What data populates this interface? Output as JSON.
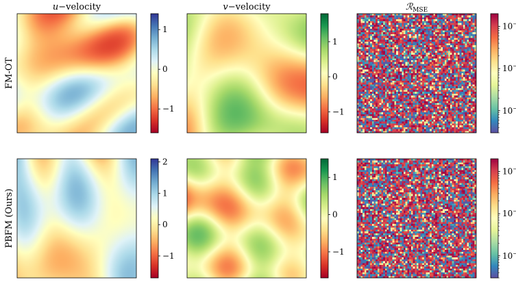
{
  "chart_data": {
    "type": "heatmap",
    "columns": [
      {
        "title_var": "u",
        "title_rest": "−velocity",
        "colormap": "RdYlBu"
      },
      {
        "title_var": "v",
        "title_rest": "−velocity",
        "colormap": "RdYlGn"
      },
      {
        "title_var": "ℛ",
        "title_sub": "MSE",
        "colormap": "Spectral"
      }
    ],
    "rows": [
      {
        "label": "FM-OT",
        "panels": [
          {
            "field": "smooth",
            "range": [
              -1.6,
              1.4
            ],
            "ticks": [
              {
                "label": "−1",
                "value": -1
              },
              {
                "label": "0",
                "value": 0
              },
              {
                "label": "1",
                "value": 1
              }
            ],
            "scale": "linear"
          },
          {
            "field": "smooth",
            "range": [
              -1.6,
              1.8
            ],
            "ticks": [
              {
                "label": "−1",
                "value": -1
              },
              {
                "label": "0",
                "value": 0
              },
              {
                "label": "1",
                "value": 1
              }
            ],
            "scale": "linear"
          },
          {
            "field": "noise",
            "range": [
              0.0003,
              0.2
            ],
            "ticks": [
              {
                "label": "10",
                "exp": "−3",
                "value": 0.001
              },
              {
                "label": "10",
                "exp": "−2",
                "value": 0.01
              },
              {
                "label": "10",
                "exp": "−1",
                "value": 0.1
              }
            ],
            "scale": "log"
          }
        ]
      },
      {
        "label": "PBFM (Ours)",
        "panels": [
          {
            "field": "smooth",
            "range": [
              -1.7,
              2.1
            ],
            "ticks": [
              {
                "label": "−1",
                "value": -1
              },
              {
                "label": "0",
                "value": 0
              },
              {
                "label": "1",
                "value": 1
              },
              {
                "label": "2",
                "value": 2
              }
            ],
            "scale": "linear"
          },
          {
            "field": "smooth",
            "range": [
              -1.7,
              1.5
            ],
            "ticks": [
              {
                "label": "−1",
                "value": -1
              },
              {
                "label": "0",
                "value": 0
              },
              {
                "label": "1",
                "value": 1
              }
            ],
            "scale": "linear"
          },
          {
            "field": "noise",
            "range": [
              0.0003,
              0.2
            ],
            "ticks": [
              {
                "label": "10",
                "exp": "−3",
                "value": 0.001
              },
              {
                "label": "10",
                "exp": "−2",
                "value": 0.01
              },
              {
                "label": "10",
                "exp": "−1",
                "value": 0.1
              }
            ],
            "scale": "log"
          }
        ]
      }
    ]
  }
}
